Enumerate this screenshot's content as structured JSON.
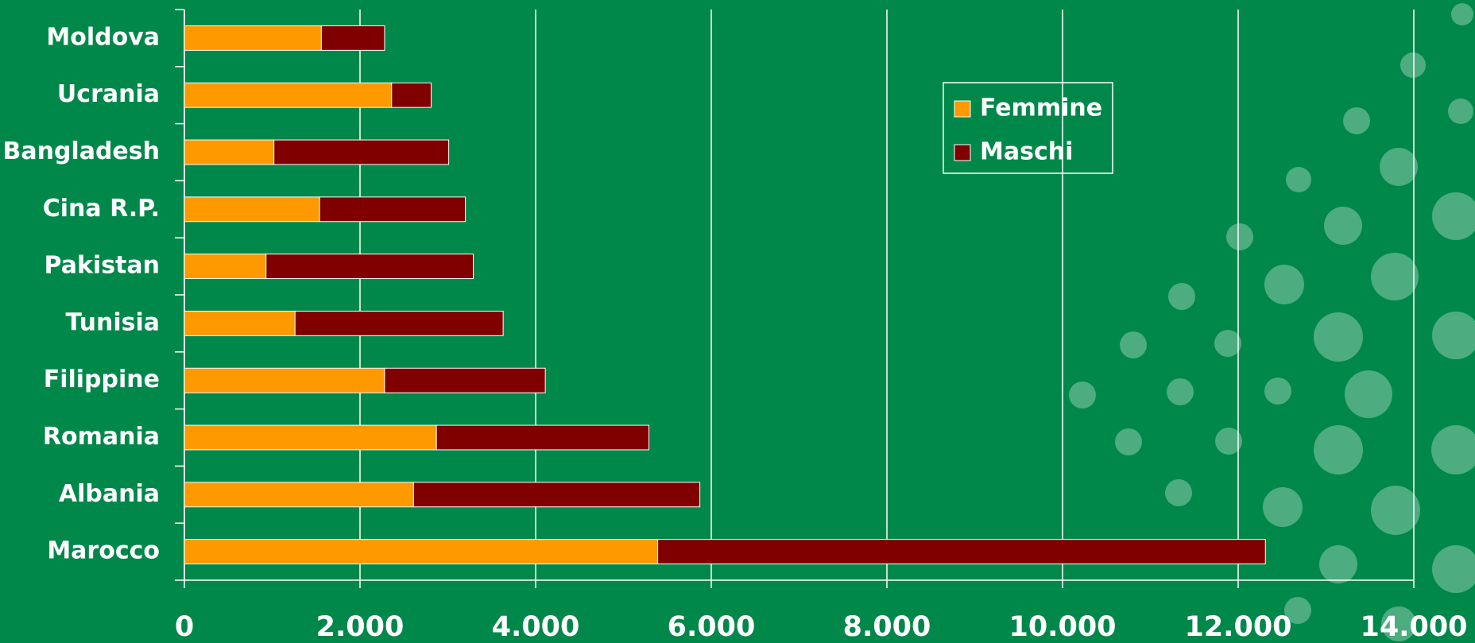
{
  "chart_data": {
    "type": "stacked-bar-horizontal",
    "categories": [
      "Moldova",
      "Ucrania",
      "Bangladesh",
      "Cina R.P.",
      "Pakistan",
      "Tunisia",
      "Filippine",
      "Romania",
      "Albania",
      "Marocco"
    ],
    "series": [
      {
        "name": "Femmine",
        "color": "#ff9900",
        "values": [
          1560,
          2360,
          1020,
          1540,
          930,
          1260,
          2280,
          2870,
          2610,
          5390
        ]
      },
      {
        "name": "Maschi",
        "color": "#800000",
        "values": [
          720,
          450,
          1990,
          1660,
          2360,
          2370,
          1830,
          2420,
          3260,
          6920
        ]
      }
    ],
    "xlim": [
      0,
      14000
    ],
    "xticks": [
      0,
      {
        "value": 2000,
        "label": "2.000"
      },
      {
        "value": 4000,
        "label": "4.000"
      },
      {
        "value": 6000,
        "label": "6.000"
      },
      {
        "value": 8000,
        "label": "8.000"
      },
      {
        "value": 10000,
        "label": "10.000"
      },
      {
        "value": 12000,
        "label": "12.000"
      },
      {
        "value": 14000,
        "label": "14.000"
      }
    ],
    "grid": true,
    "legend": "upper-right"
  }
}
